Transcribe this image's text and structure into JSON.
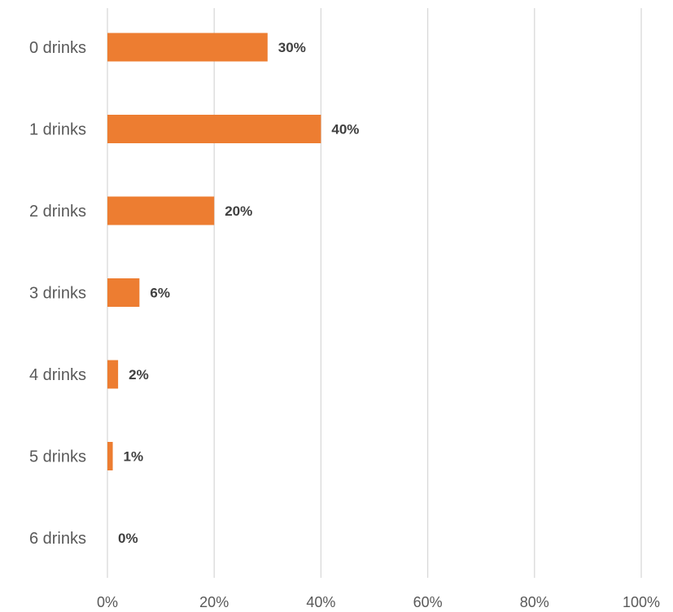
{
  "chart_data": {
    "type": "bar",
    "orientation": "horizontal",
    "title": "",
    "xlabel": "",
    "ylabel": "",
    "categories": [
      "0 drinks",
      "1 drinks",
      "2 drinks",
      "3 drinks",
      "4 drinks",
      "5 drinks",
      "6 drinks"
    ],
    "values": [
      30,
      40,
      20,
      6,
      2,
      1,
      0
    ],
    "value_unit": "%",
    "data_labels": [
      "30%",
      "40%",
      "20%",
      "6%",
      "2%",
      "1%",
      "0%"
    ],
    "xlim": [
      0,
      100
    ],
    "x_ticks": [
      0,
      20,
      40,
      60,
      80,
      100
    ],
    "x_tick_labels": [
      "0%",
      "20%",
      "40%",
      "60%",
      "80%",
      "100%"
    ],
    "grid": "vertical",
    "legend": "none",
    "bar_color": "#ED7D31"
  }
}
